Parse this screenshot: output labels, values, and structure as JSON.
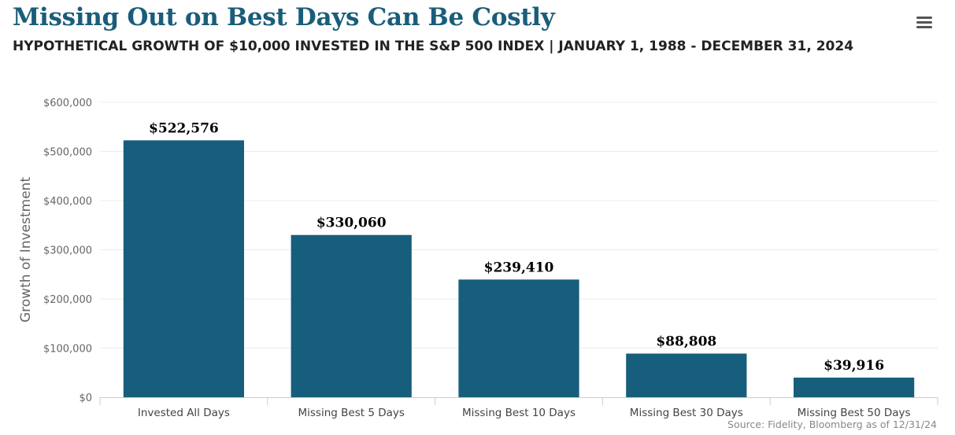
{
  "header": {
    "title": "Missing Out on Best Days Can Be Costly",
    "subtitle": "HYPOTHETICAL GROWTH OF $10,000 INVESTED IN THE S&P 500 INDEX | JANUARY 1, 1988 - DECEMBER 31, 2024",
    "menu_icon": "hamburger-menu-icon"
  },
  "source": "Source: Fidelity, Bloomberg as of 12/31/24",
  "chart_data": {
    "type": "bar",
    "title": "Missing Out on Best Days Can Be Costly",
    "subtitle": "HYPOTHETICAL GROWTH OF $10,000 INVESTED IN THE S&P 500 INDEX | JANUARY 1, 1988 - DECEMBER 31, 2024",
    "categories": [
      "Invested All Days",
      "Missing Best 5 Days",
      "Missing Best 10 Days",
      "Missing Best 30 Days",
      "Missing Best 50 Days"
    ],
    "values": [
      522576,
      330060,
      239410,
      88808,
      39916
    ],
    "data_labels": [
      "$522,576",
      "$330,060",
      "$239,410",
      "$88,808",
      "$39,916"
    ],
    "xlabel": "",
    "ylabel": "Growth of Investment",
    "ylim": [
      0,
      600000
    ],
    "yticks": [
      0,
      100000,
      200000,
      300000,
      400000,
      500000,
      600000
    ],
    "ytick_labels": [
      "$0",
      "$100,000",
      "$200,000",
      "$300,000",
      "$400,000",
      "$500,000",
      "$600,000"
    ],
    "grid": true,
    "legend": "none",
    "bar_color": "#175e7c"
  }
}
